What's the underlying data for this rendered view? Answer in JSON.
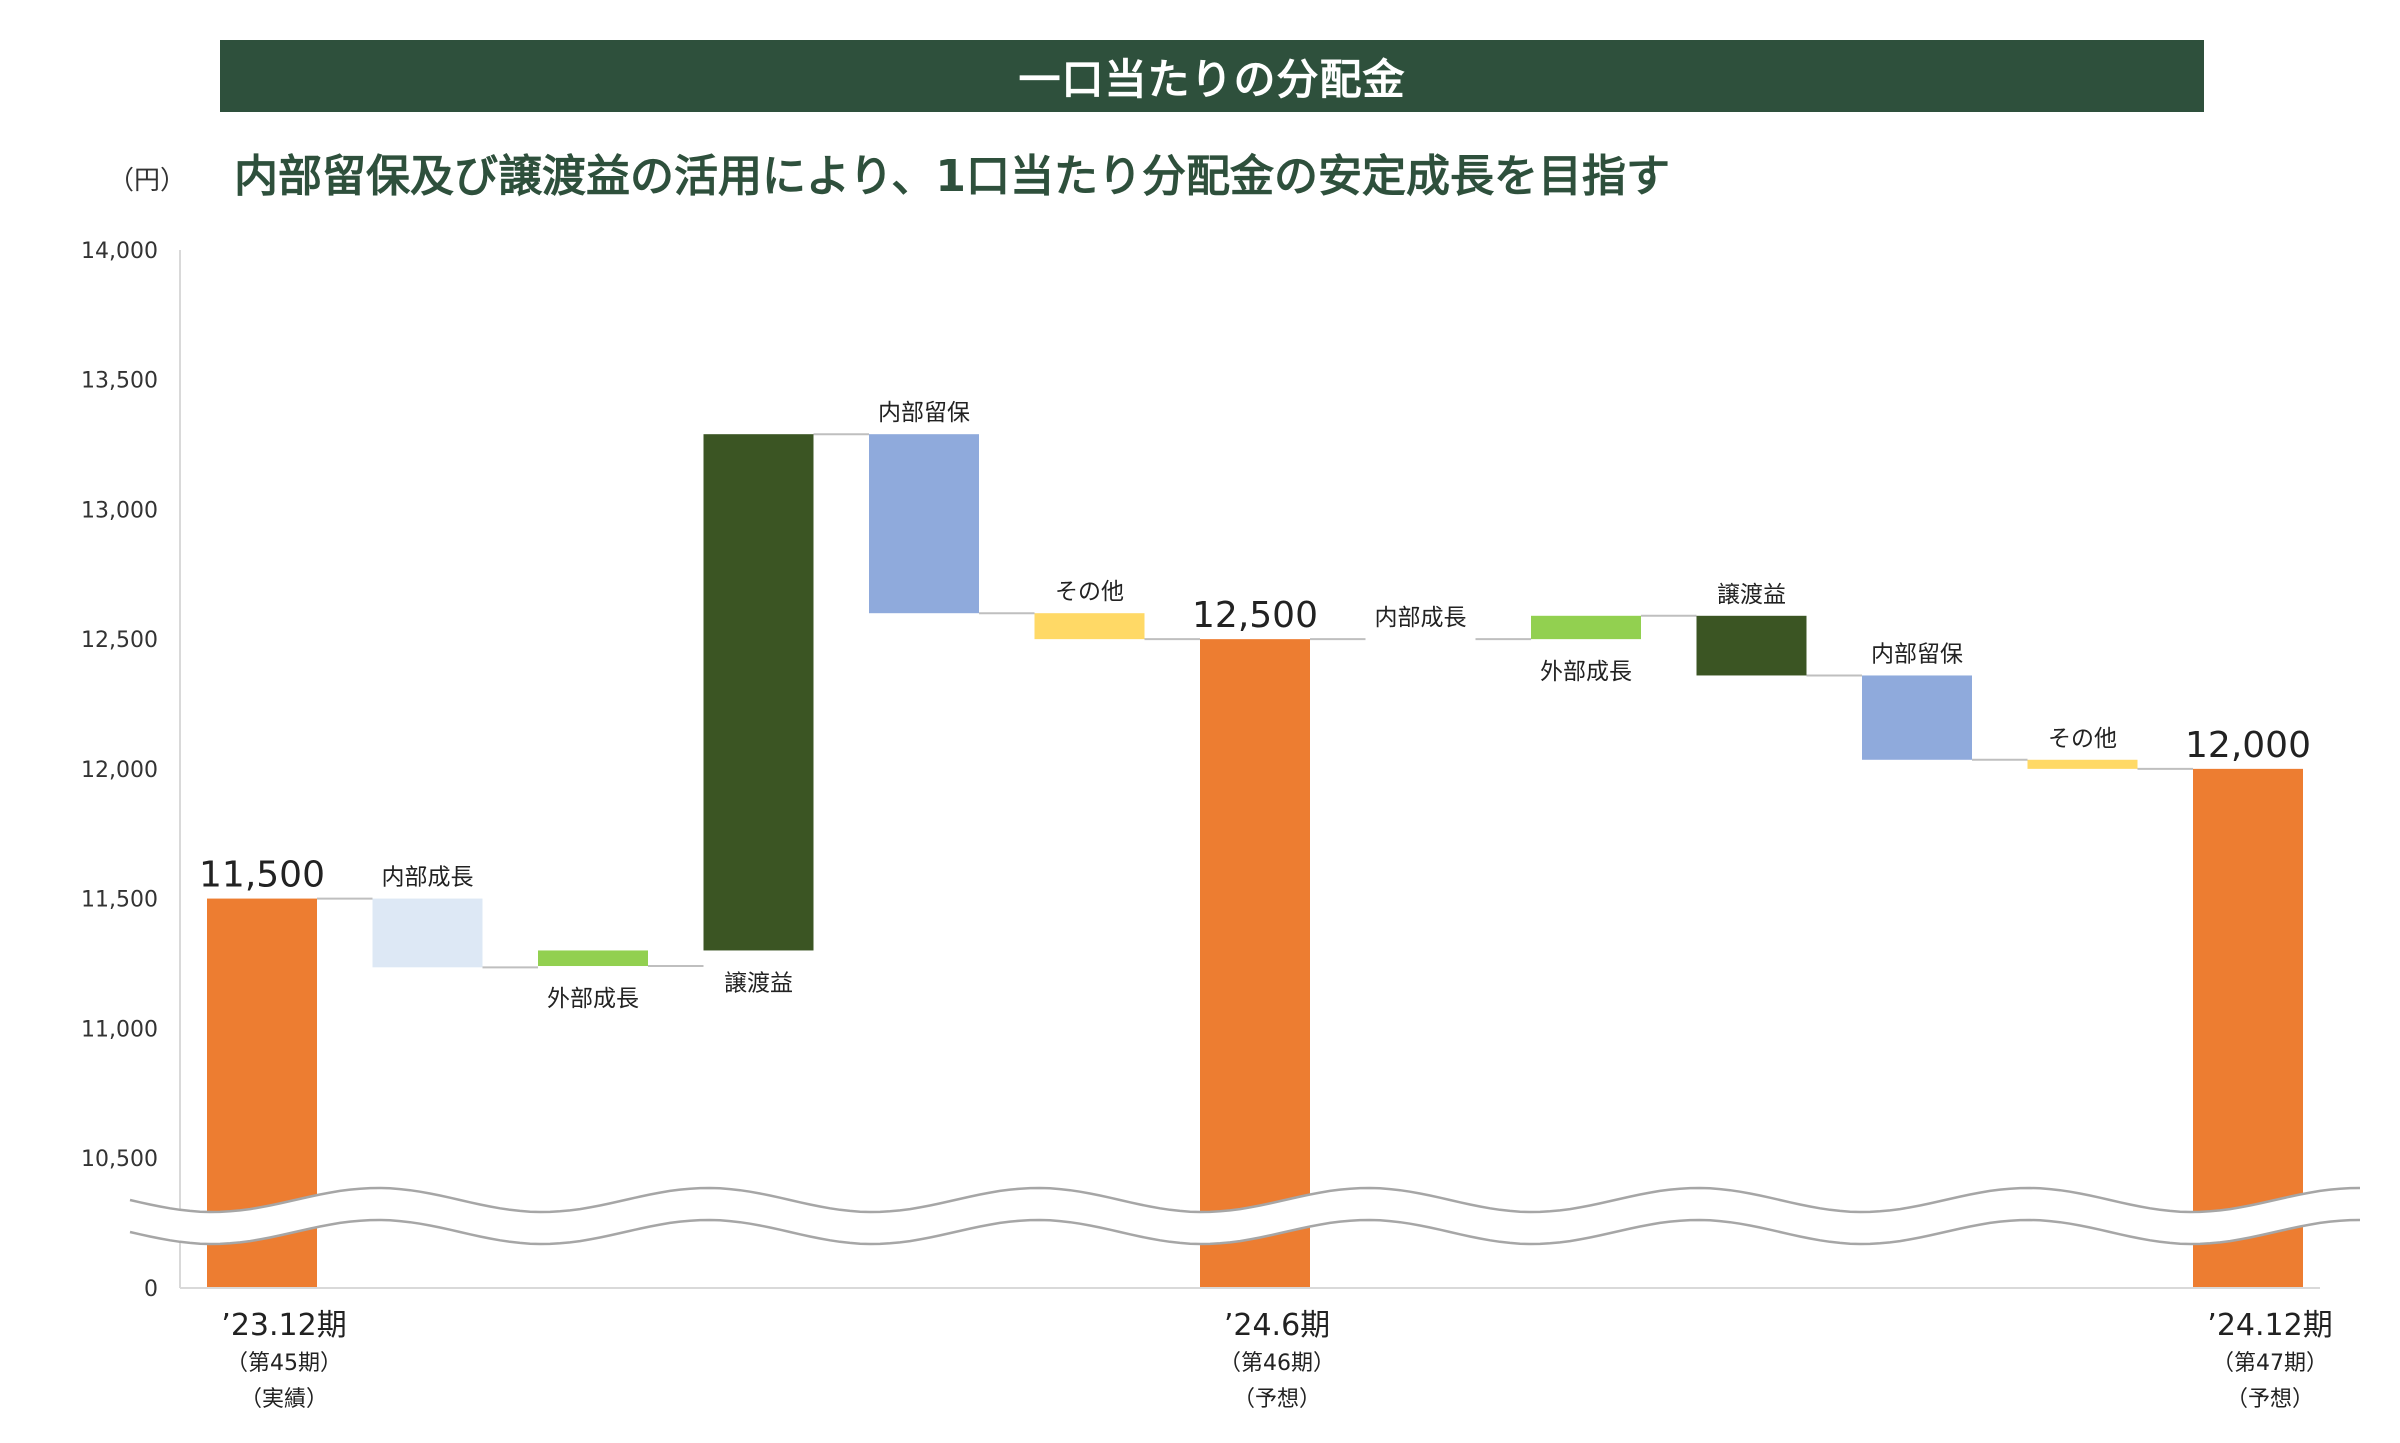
{
  "header": {
    "banner_title": "一口当たりの分配金",
    "subtitle": "内部留保及び譲渡益の活用により、1口当たり分配金の安定成長を目指す",
    "unit_label": "（円）"
  },
  "colors": {
    "banner_bg": "#2e503c",
    "total": "#ed7d31",
    "internal_growth": "#dde8f5",
    "external_growth": "#92d050",
    "transfer_gain": "#3b5523",
    "internal_reserve": "#8faadc",
    "other": "#ffd966",
    "connector": "#bfbfbf",
    "axis": "#d9d9d9"
  },
  "chart_data": {
    "type": "bar",
    "subtype": "waterfall",
    "title": "一口当たりの分配金",
    "ylabel": "（円）",
    "y_ticks": [
      "0",
      "10,500",
      "11,000",
      "11,500",
      "12,000",
      "12,500",
      "13,000",
      "13,500",
      "14,000"
    ],
    "y_tick_values": [
      10350,
      10500,
      11000,
      11500,
      12000,
      12500,
      13000,
      13500,
      14000
    ],
    "ylim": [
      10350,
      14000
    ],
    "axis_break": true,
    "bars": [
      {
        "kind": "total",
        "label": "11,500",
        "value": 11500,
        "color_key": "total"
      },
      {
        "kind": "delta",
        "label": "内部成長",
        "start": 11500,
        "end": 11235,
        "color_key": "internal_growth",
        "label_pos": "above"
      },
      {
        "kind": "delta",
        "label": "外部成長",
        "start": 11300,
        "end": 11240,
        "color_key": "external_growth",
        "label_pos": "below"
      },
      {
        "kind": "delta",
        "label": "譲渡益",
        "start": 11300,
        "end": 13290,
        "color_key": "transfer_gain",
        "label_pos": "below"
      },
      {
        "kind": "delta",
        "label": "内部留保",
        "start": 13290,
        "end": 12600,
        "color_key": "internal_reserve",
        "label_pos": "above"
      },
      {
        "kind": "delta",
        "label": "その他",
        "start": 12600,
        "end": 12500,
        "color_key": "other",
        "label_pos": "above"
      },
      {
        "kind": "total",
        "label": "12,500",
        "value": 12500,
        "color_key": "total"
      },
      {
        "kind": "delta",
        "label": "内部成長",
        "start": 12500,
        "end": 12500,
        "color_key": "internal_growth",
        "label_pos": "above"
      },
      {
        "kind": "delta",
        "label": "外部成長",
        "start": 12500,
        "end": 12590,
        "color_key": "external_growth",
        "label_pos": "below"
      },
      {
        "kind": "delta",
        "label": "譲渡益",
        "start": 12590,
        "end": 12360,
        "color_key": "transfer_gain",
        "label_pos": "above"
      },
      {
        "kind": "delta",
        "label": "内部留保",
        "start": 12360,
        "end": 12035,
        "color_key": "internal_reserve",
        "label_pos": "above"
      },
      {
        "kind": "delta",
        "label": "その他",
        "start": 12035,
        "end": 12000,
        "color_key": "other",
        "label_pos": "above"
      },
      {
        "kind": "total",
        "label": "12,000",
        "value": 12000,
        "color_key": "total"
      }
    ],
    "x_labels": [
      {
        "bar_index": 0,
        "period": "’23.12期",
        "fiscal": "（第45期）",
        "status": "（実績）"
      },
      {
        "bar_index": 6,
        "period": "’24.6期",
        "fiscal": "（第46期）",
        "status": "（予想）"
      },
      {
        "bar_index": 12,
        "period": "’24.12期",
        "fiscal": "（第47期）",
        "status": "（予想）"
      }
    ]
  }
}
